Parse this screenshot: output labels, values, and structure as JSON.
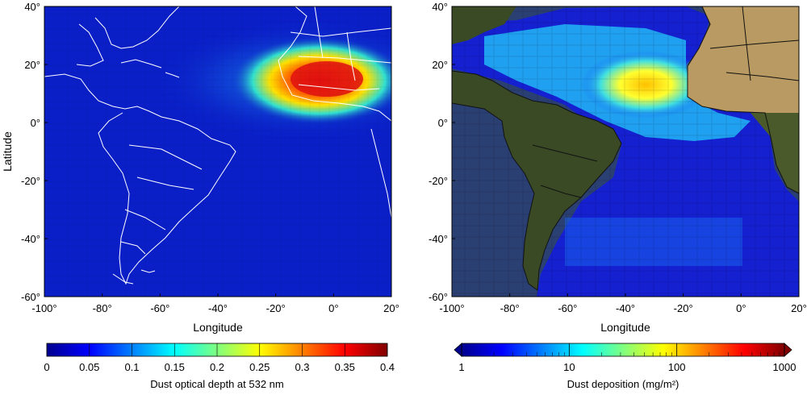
{
  "left_map": {
    "ylabel": "Latitude",
    "xlabel": "Longitude",
    "lon_ticks": [
      "-100°",
      "-80°",
      "-60°",
      "-40°",
      "-20°",
      "0°",
      "20°"
    ],
    "lat_ticks": [
      "40°",
      "20°",
      "0°",
      "-20°",
      "-40°",
      "-60°"
    ],
    "colorbar": {
      "label": "Dust optical depth at 532 nm",
      "ticks": [
        "0",
        "0.05",
        "0.1",
        "0.15",
        "0.2",
        "0.25",
        "0.3",
        "0.35",
        "0.4"
      ],
      "scale": "linear",
      "range": [
        0,
        0.4
      ]
    }
  },
  "right_map": {
    "xlabel": "Longitude",
    "lon_ticks": [
      "-100°",
      "-80°",
      "-60°",
      "-40°",
      "-20°",
      "0°",
      "20°"
    ],
    "lat_ticks": [
      "40°",
      "20°",
      "0°",
      "-20°",
      "-40°",
      "-60°"
    ],
    "colorbar": {
      "label": "Dust deposition (mg/m²)",
      "ticks": [
        "1",
        "10",
        "100",
        "1000"
      ],
      "scale": "log",
      "range": [
        1,
        1000
      ]
    }
  },
  "colors": {
    "ocean_background": "#0a1fc8",
    "plume_core": "#e01010",
    "land_dark": "#33421f",
    "land_desert": "#b89a62",
    "outline_left": "#ffffff",
    "outline_right": "#111111"
  }
}
